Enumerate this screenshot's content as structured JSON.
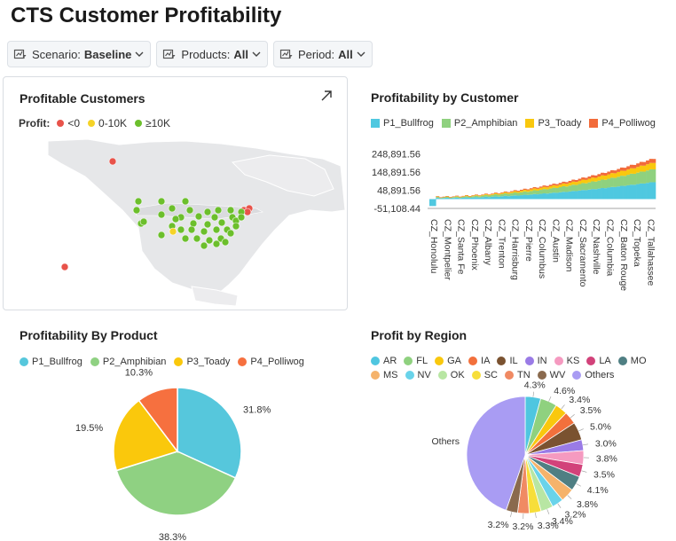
{
  "header": {
    "title": "CTS Customer Profitability"
  },
  "filters": [
    {
      "label": "Scenario:",
      "value": "Baseline"
    },
    {
      "label": "Products:",
      "value": "All"
    },
    {
      "label": "Period:",
      "value": "All"
    }
  ],
  "map": {
    "title": "Profitable Customers",
    "legend_title": "Profit:",
    "legend": [
      {
        "label": "<0",
        "color": "#e8534a"
      },
      {
        "label": "0-10K",
        "color": "#f5d327"
      },
      {
        "label": "≥10K",
        "color": "#6cbf2c"
      }
    ],
    "expand_icon": "expand-icon"
  },
  "chart_data": [
    {
      "type": "bar",
      "stacked": true,
      "title": "Profitability by Customer",
      "series": [
        {
          "name": "P1_Bullfrog",
          "color": "#4fc8e0"
        },
        {
          "name": "P2_Amphibian",
          "color": "#8fd17f"
        },
        {
          "name": "P3_Toady",
          "color": "#f9c80e"
        },
        {
          "name": "P4_Polliwog",
          "color": "#f26b3a"
        }
      ],
      "yticks": [
        "248,891.56",
        "148,891.56",
        "48,891.56",
        "-51,108.44"
      ],
      "yrange": [
        -51108.44,
        298891.56
      ],
      "categories": [
        "CZ_Honolulu",
        "CZ_Montpelier",
        "CZ_Santa Fe",
        "CZ_Phoenix",
        "CZ_Albany",
        "CZ_Trenton",
        "CZ_Harrisburg",
        "CZ_Pierre",
        "CZ_Columbus",
        "CZ_Austin",
        "CZ_Madison",
        "CZ_Sacramento",
        "CZ_Nashville",
        "CZ_Columbia",
        "CZ_Baton Rouge",
        "CZ_Topeka",
        "CZ_Tallahassee"
      ],
      "totals": [
        -40000,
        15000,
        20000,
        24000,
        30000,
        34000,
        40000,
        46000,
        52000,
        60000,
        68000,
        78000,
        86000,
        96000,
        120000,
        150000,
        230000
      ]
    },
    {
      "type": "pie",
      "title": "Profitability By Product",
      "slices": [
        {
          "label": "P1_Bullfrog",
          "value": 31.8,
          "text": "31.8%",
          "color": "#56c7dc"
        },
        {
          "label": "P2_Amphibian",
          "value": 38.3,
          "text": "38.3%",
          "color": "#8fd182"
        },
        {
          "label": "P3_Toady",
          "value": 19.5,
          "text": "19.5%",
          "color": "#fac80c"
        },
        {
          "label": "P4_Polliwog",
          "value": 10.3,
          "text": "10.3%",
          "color": "#f6703f"
        }
      ]
    },
    {
      "type": "pie",
      "title": "Profit by Region",
      "legend": [
        {
          "label": "AR",
          "color": "#4fc6e0"
        },
        {
          "label": "FL",
          "color": "#8fd17f"
        },
        {
          "label": "GA",
          "color": "#f9c80e"
        },
        {
          "label": "IA",
          "color": "#f2703c"
        },
        {
          "label": "IL",
          "color": "#7a5230"
        },
        {
          "label": "IN",
          "color": "#9a7be6"
        },
        {
          "label": "KS",
          "color": "#f59ac0"
        },
        {
          "label": "LA",
          "color": "#d2427a"
        },
        {
          "label": "MO",
          "color": "#4f7f83"
        },
        {
          "label": "MS",
          "color": "#f5b36b"
        },
        {
          "label": "NV",
          "color": "#69d3ea"
        },
        {
          "label": "OK",
          "color": "#b8e6a3"
        },
        {
          "label": "SC",
          "color": "#f7de3a"
        },
        {
          "label": "TN",
          "color": "#f08a63"
        },
        {
          "label": "WV",
          "color": "#8a6a4e"
        },
        {
          "label": "Others",
          "color": "#a99cf3"
        }
      ],
      "slices": [
        {
          "label": "AR",
          "value": 4.3,
          "text": "4.3%"
        },
        {
          "label": "FL",
          "value": 4.6,
          "text": "4.6%"
        },
        {
          "label": "GA",
          "value": 3.4,
          "text": "3.4%"
        },
        {
          "label": "IA",
          "value": 3.5,
          "text": "3.5%"
        },
        {
          "label": "IL",
          "value": 5.0,
          "text": "5.0%"
        },
        {
          "label": "IN",
          "value": 3.0,
          "text": "3.0%"
        },
        {
          "label": "KS",
          "value": 3.8,
          "text": "3.8%"
        },
        {
          "label": "LA",
          "value": 3.5,
          "text": "3.5%"
        },
        {
          "label": "MO",
          "value": 4.1,
          "text": "4.1%"
        },
        {
          "label": "MS",
          "value": 3.8,
          "text": "3.8%"
        },
        {
          "label": "NV",
          "value": 3.2,
          "text": "3.2%"
        },
        {
          "label": "OK",
          "value": 3.4,
          "text": "3.4%"
        },
        {
          "label": "SC",
          "value": 3.3,
          "text": "3.3%"
        },
        {
          "label": "TN",
          "value": 3.2,
          "text": "3.2%"
        },
        {
          "label": "WV",
          "value": 3.2,
          "text": "3.2%"
        },
        {
          "label": "Others",
          "value": 44.7,
          "text": "Others"
        }
      ]
    }
  ]
}
